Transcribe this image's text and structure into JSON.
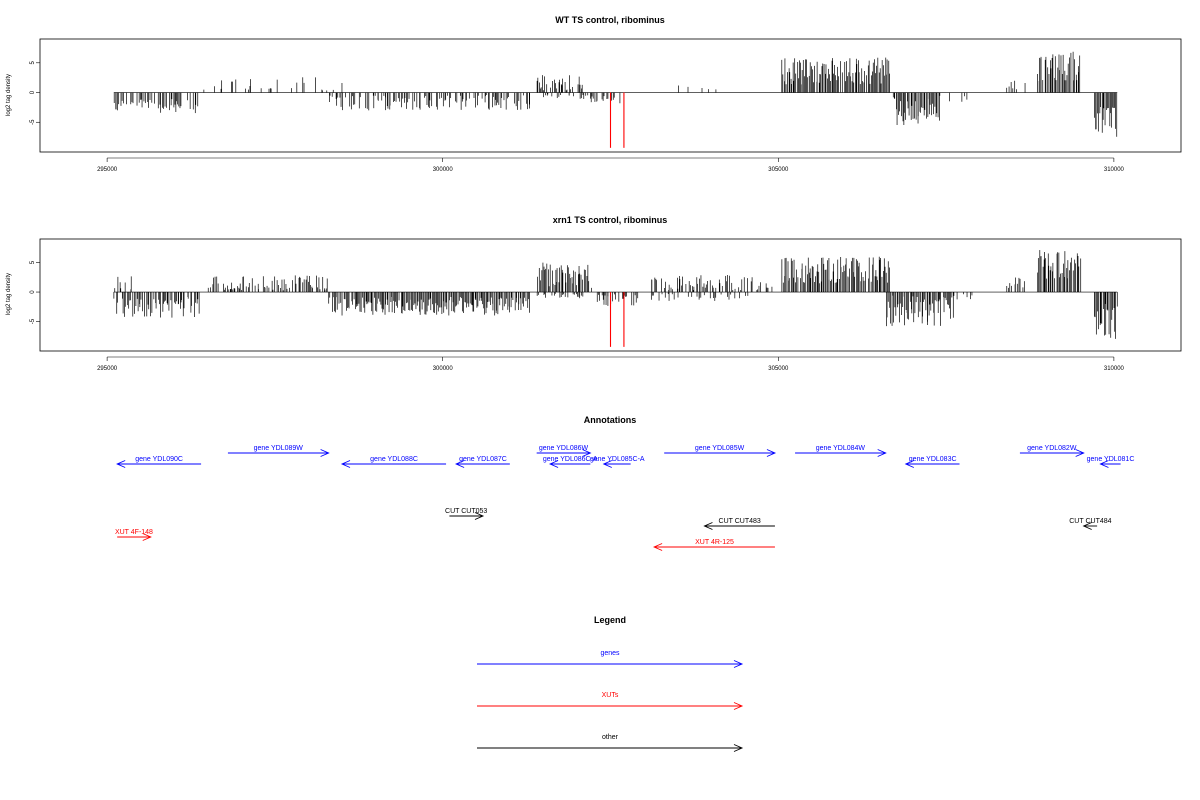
{
  "chart_data": [
    {
      "type": "bar",
      "title": "WT TS control, ribominus",
      "ylabel": "log2 tag density",
      "xlim": [
        294000,
        311000
      ],
      "ylim": [
        -10,
        9
      ],
      "x_ticks": [
        295000,
        300000,
        305000,
        310000
      ],
      "x_tick_labels": [
        "295000",
        "300000",
        "305000",
        "310000"
      ],
      "y_ticks": [
        -5,
        0,
        5
      ],
      "y_tick_labels": [
        "-5",
        "0",
        "5"
      ],
      "series": [
        {
          "segments": [
            {
              "start": 295100,
              "end": 296400,
              "sign": -1,
              "mean": 2.3,
              "amp": 1.2,
              "density": 0.55,
              "seed": 11
            },
            {
              "start": 296400,
              "end": 298500,
              "sign": 1,
              "mean": 0.9,
              "amp": 1.8,
              "density": 0.22,
              "seed": 12
            },
            {
              "start": 298300,
              "end": 301300,
              "sign": -1,
              "mean": 1.7,
              "amp": 1.3,
              "density": 0.6,
              "seed": 13
            },
            {
              "start": 301400,
              "end": 302100,
              "sign": 1,
              "mean": 1.8,
              "amp": 1.6,
              "density": 0.6,
              "seed": 14
            },
            {
              "start": 301500,
              "end": 302200,
              "sign": -1,
              "mean": 0.6,
              "amp": 0.6,
              "density": 0.4,
              "seed": 15
            },
            {
              "start": 302200,
              "end": 302700,
              "sign": -1,
              "mean": 1.3,
              "amp": 0.7,
              "density": 0.5,
              "seed": 16
            },
            {
              "start": 303300,
              "end": 304200,
              "sign": 1,
              "mean": 0.4,
              "amp": 1.0,
              "density": 0.08,
              "seed": 17
            },
            {
              "start": 305050,
              "end": 306650,
              "sign": 1,
              "mean": 3.6,
              "amp": 2.3,
              "density": 0.95,
              "seed": 18
            },
            {
              "start": 306700,
              "end": 307400,
              "sign": -1,
              "mean": 3.2,
              "amp": 2.4,
              "density": 0.95,
              "seed": 19
            },
            {
              "start": 307400,
              "end": 307900,
              "sign": -1,
              "mean": 0.8,
              "amp": 0.8,
              "density": 0.3,
              "seed": 20
            },
            {
              "start": 308400,
              "end": 308700,
              "sign": 1,
              "mean": 1.3,
              "amp": 0.8,
              "density": 0.4,
              "seed": 21
            },
            {
              "start": 308850,
              "end": 309500,
              "sign": 1,
              "mean": 4.3,
              "amp": 2.6,
              "density": 0.95,
              "seed": 22
            },
            {
              "start": 309700,
              "end": 310050,
              "sign": -1,
              "mean": 5.0,
              "amp": 2.8,
              "density": 0.95,
              "seed": 23
            }
          ],
          "highlights": [
            {
              "x": 302500,
              "y": -9.3,
              "color": "#ff0000"
            },
            {
              "x": 302700,
              "y": -9.3,
              "color": "#ff0000"
            }
          ]
        }
      ]
    },
    {
      "type": "bar",
      "title": "xrn1 TS control, ribominus",
      "ylabel": "log2 tag density",
      "xlim": [
        294000,
        311000
      ],
      "ylim": [
        -10,
        9
      ],
      "x_ticks": [
        295000,
        300000,
        305000,
        310000
      ],
      "x_tick_labels": [
        "295000",
        "300000",
        "305000",
        "310000"
      ],
      "y_ticks": [
        -5,
        0,
        5
      ],
      "y_tick_labels": [
        "-5",
        "0",
        "5"
      ],
      "series": [
        {
          "segments": [
            {
              "start": 295100,
              "end": 296400,
              "sign": -1,
              "mean": 2.6,
              "amp": 1.8,
              "density": 0.8,
              "seed": 31
            },
            {
              "start": 295100,
              "end": 295400,
              "sign": 1,
              "mean": 1.2,
              "amp": 1.5,
              "density": 0.4,
              "seed": 32
            },
            {
              "start": 296500,
              "end": 298300,
              "sign": 1,
              "mean": 1.4,
              "amp": 1.5,
              "density": 0.55,
              "seed": 33
            },
            {
              "start": 298300,
              "end": 301300,
              "sign": -1,
              "mean": 2.4,
              "amp": 1.6,
              "density": 0.95,
              "seed": 34
            },
            {
              "start": 301400,
              "end": 302200,
              "sign": 1,
              "mean": 2.8,
              "amp": 2.2,
              "density": 0.9,
              "seed": 35
            },
            {
              "start": 301400,
              "end": 302100,
              "sign": -1,
              "mean": 0.6,
              "amp": 0.5,
              "density": 0.4,
              "seed": 36
            },
            {
              "start": 302300,
              "end": 302900,
              "sign": -1,
              "mean": 1.4,
              "amp": 1.0,
              "density": 0.7,
              "seed": 37
            },
            {
              "start": 303100,
              "end": 304900,
              "sign": 1,
              "mean": 1.5,
              "amp": 1.4,
              "density": 0.5,
              "seed": 38
            },
            {
              "start": 303100,
              "end": 304600,
              "sign": -1,
              "mean": 0.8,
              "amp": 0.8,
              "density": 0.3,
              "seed": 39
            },
            {
              "start": 305050,
              "end": 306650,
              "sign": 1,
              "mean": 3.7,
              "amp": 2.3,
              "density": 0.95,
              "seed": 40
            },
            {
              "start": 306600,
              "end": 307600,
              "sign": -1,
              "mean": 3.2,
              "amp": 2.6,
              "density": 0.95,
              "seed": 41
            },
            {
              "start": 307600,
              "end": 307900,
              "sign": -1,
              "mean": 0.8,
              "amp": 0.6,
              "density": 0.3,
              "seed": 42
            },
            {
              "start": 308400,
              "end": 308700,
              "sign": 1,
              "mean": 1.8,
              "amp": 1.2,
              "density": 0.6,
              "seed": 43
            },
            {
              "start": 308850,
              "end": 309500,
              "sign": 1,
              "mean": 4.6,
              "amp": 2.8,
              "density": 0.95,
              "seed": 44
            },
            {
              "start": 309700,
              "end": 310050,
              "sign": -1,
              "mean": 5.0,
              "amp": 3.0,
              "density": 0.95,
              "seed": 45
            }
          ],
          "highlights": [
            {
              "x": 302500,
              "y": -9.3,
              "color": "#ff0000"
            },
            {
              "x": 302700,
              "y": -9.3,
              "color": "#ff0000"
            }
          ]
        }
      ]
    }
  ],
  "annotations": {
    "title": "Annotations",
    "xlim": [
      294000,
      311000
    ],
    "items": [
      {
        "label": "gene YDL090C",
        "start": 295150,
        "end": 296400,
        "dir": "left",
        "row": 1,
        "color": "#0000ff"
      },
      {
        "label": "gene YDL089W",
        "start": 296800,
        "end": 298300,
        "dir": "right",
        "row": 0,
        "color": "#0000ff"
      },
      {
        "label": "gene YDL088C",
        "start": 298500,
        "end": 300050,
        "dir": "left",
        "row": 1,
        "color": "#0000ff"
      },
      {
        "label": "gene YDL087C",
        "start": 300200,
        "end": 301000,
        "dir": "left",
        "row": 1,
        "color": "#0000ff"
      },
      {
        "label": "gene YDL086W",
        "start": 301400,
        "end": 302200,
        "dir": "right",
        "row": 0,
        "color": "#0000ff"
      },
      {
        "label": "gene YDL086C-A",
        "start": 301600,
        "end": 302200,
        "dir": "left",
        "row": 1,
        "color": "#0000ff"
      },
      {
        "label": "gene YDL085C-A",
        "start": 302400,
        "end": 302800,
        "dir": "left",
        "row": 1,
        "color": "#0000ff"
      },
      {
        "label": "gene YDL085W",
        "start": 303300,
        "end": 304950,
        "dir": "right",
        "row": 0,
        "color": "#0000ff"
      },
      {
        "label": "gene YDL084W",
        "start": 305250,
        "end": 306600,
        "dir": "right",
        "row": 0,
        "color": "#0000ff"
      },
      {
        "label": "gene YDL083C",
        "start": 306900,
        "end": 307700,
        "dir": "left",
        "row": 1,
        "color": "#0000ff"
      },
      {
        "label": "gene YDL082W",
        "start": 308600,
        "end": 309550,
        "dir": "right",
        "row": 0,
        "color": "#0000ff"
      },
      {
        "label": "gene YDL081C",
        "start": 309800,
        "end": 310100,
        "dir": "left",
        "row": 1,
        "color": "#0000ff"
      },
      {
        "label": "CUT CUT053",
        "start": 300100,
        "end": 300600,
        "dir": "right",
        "row": 2,
        "color": "#000000"
      },
      {
        "label": "CUT CUT483",
        "start": 303900,
        "end": 304950,
        "dir": "left",
        "row": 3,
        "color": "#000000"
      },
      {
        "label": "CUT CUT484",
        "start": 309550,
        "end": 309750,
        "dir": "left",
        "row": 3,
        "color": "#000000"
      },
      {
        "label": "XUT 4F-148",
        "start": 295150,
        "end": 295650,
        "dir": "right",
        "row": 4,
        "color": "#ff0000"
      },
      {
        "label": "XUT 4R-125",
        "start": 303150,
        "end": 304950,
        "dir": "left",
        "row": 5,
        "color": "#ff0000"
      }
    ]
  },
  "legend": {
    "title": "Legend",
    "items": [
      {
        "label": "genes",
        "color": "#0000ff"
      },
      {
        "label": "XUTs",
        "color": "#ff0000"
      },
      {
        "label": "other",
        "color": "#000000"
      }
    ]
  }
}
